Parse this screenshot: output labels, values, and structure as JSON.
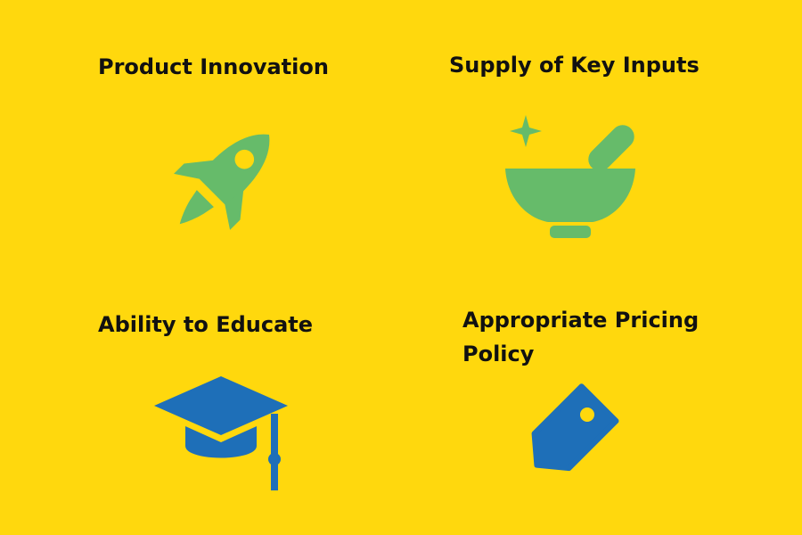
{
  "cards": [
    {
      "title": "Product Innovation",
      "icon": "rocket-icon",
      "color": "#66BB6A"
    },
    {
      "title": "Supply of Key Inputs",
      "icon": "mortar-pestle-icon",
      "color": "#66BB6A"
    },
    {
      "title": "Ability to Educate",
      "icon": "graduation-cap-icon",
      "color": "#1E6FB8"
    },
    {
      "title": "Appropriate Pricing Policy",
      "icon": "price-tag-icon",
      "color": "#1E6FB8"
    }
  ],
  "colors": {
    "background": "#FFD80D",
    "text": "#111111"
  }
}
